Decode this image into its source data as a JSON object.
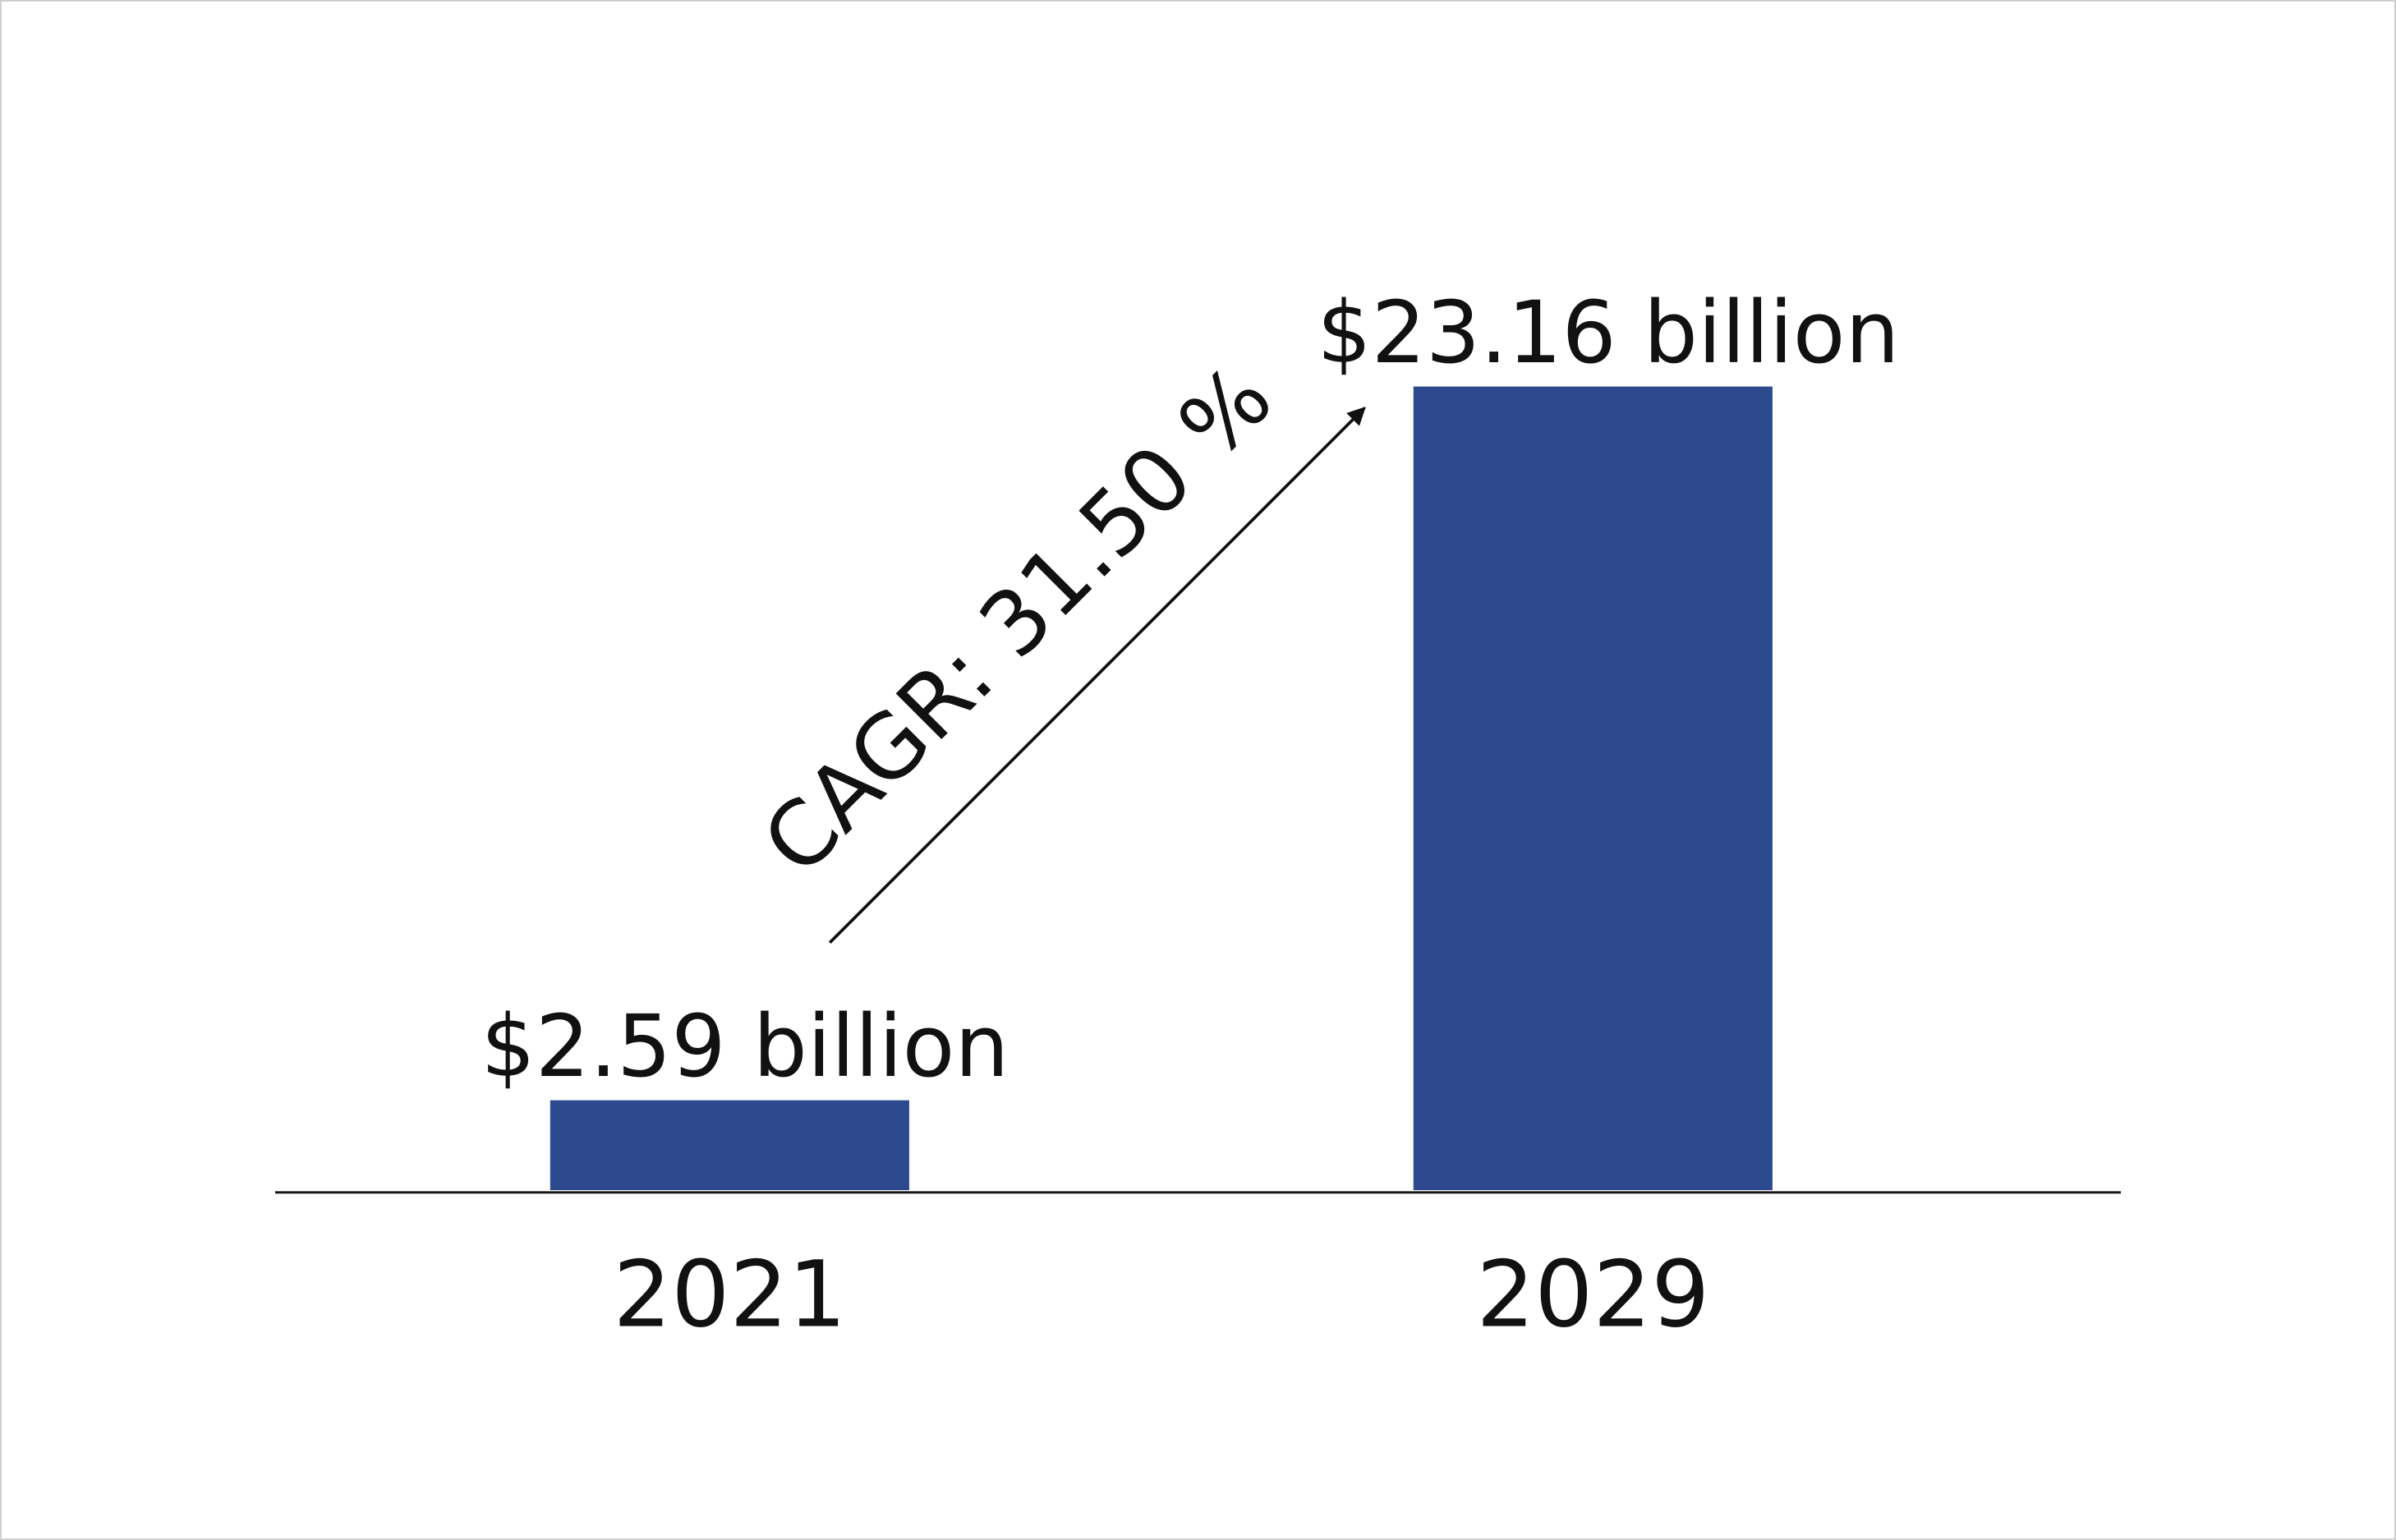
{
  "chart_data": {
    "type": "bar",
    "categories": [
      "2021",
      "2029"
    ],
    "values": [
      2.59,
      23.16
    ],
    "value_labels": [
      "$2.59 billion",
      "$23.16 billion"
    ],
    "color": "#2d4a8f",
    "annotation": "CAGR: 31.50 %"
  }
}
